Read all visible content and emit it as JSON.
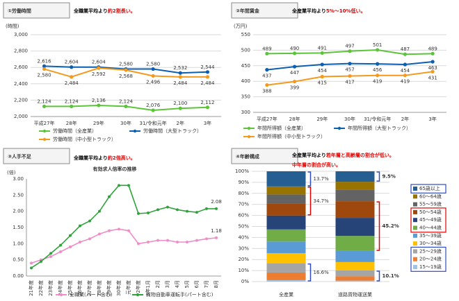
{
  "chart_data": [
    {
      "type": "line",
      "title": "①労働時間",
      "subtitle": [
        [
          {
            "text": "全職業平均より",
            "color": "#000000"
          },
          {
            "text": "約2割長い。",
            "color": "#e00000"
          }
        ]
      ],
      "y_label": "(時間)",
      "grid": true,
      "categories": [
        "平成27年",
        "28年",
        "29年",
        "30年",
        "31/令和元年",
        "2年",
        "3年"
      ],
      "ylim": [
        2000,
        3000
      ],
      "yticks": [
        {
          "value": 2000,
          "label": "2,000"
        },
        {
          "value": 2200,
          "label": "2,200"
        },
        {
          "value": 2400,
          "label": "2,400"
        },
        {
          "value": 2600,
          "label": "2,600"
        },
        {
          "value": 2800,
          "label": "2,800"
        },
        {
          "value": 3000,
          "label": "3,000"
        }
      ],
      "series": [
        {
          "name": "労働時間（全産業）",
          "color": "#5cc43a",
          "values": [
            2124,
            2124,
            2136,
            2124,
            2076,
            2100,
            2112
          ],
          "value_labels": [
            "2,124",
            "2,124",
            "2,136",
            "2,124",
            "2,076",
            "2,100",
            "2,112"
          ]
        },
        {
          "name": "労働時間（大型トラック）",
          "color": "#0b5fb0",
          "values": [
            2616,
            2604,
            2604,
            2580,
            2580,
            2532,
            2544
          ],
          "value_labels": [
            "2,616",
            "2,604",
            "2,604",
            "2,580",
            "2,580",
            "2,532",
            "2,544"
          ]
        },
        {
          "name": "労働時間（中小型トラック）",
          "color": "#f39a1e",
          "values": [
            2580,
            2484,
            2592,
            2568,
            2496,
            2484,
            2484
          ],
          "value_labels": [
            "2,580",
            "2,484",
            "2,592",
            "2,568",
            "2,496",
            "2,484",
            "2,484"
          ]
        }
      ]
    },
    {
      "type": "line",
      "title": "②年間賃金",
      "subtitle": [
        [
          {
            "text": "全産業平均より",
            "color": "#000000"
          },
          {
            "text": "5%～10%低い。",
            "color": "#e00000"
          }
        ]
      ],
      "y_label": "(万円)",
      "grid": true,
      "categories": [
        "平成27年",
        "28年",
        "29年",
        "30年",
        "31/令和元年",
        "2年",
        "3年"
      ],
      "ylim": [
        300,
        550
      ],
      "yticks": [
        300,
        350,
        400,
        450,
        500,
        550
      ],
      "series": [
        {
          "name": "年間所得額（全産業）",
          "color": "#5cc43a",
          "values": [
            489,
            490,
            491,
            497,
            501,
            487,
            489
          ]
        },
        {
          "name": "年間所得額（大型トラック）",
          "color": "#0b5fb0",
          "values": [
            437,
            447,
            454,
            457,
            456,
            454,
            463
          ]
        },
        {
          "name": "年間所得額（中小型トラック）",
          "color": "#f39a1e",
          "values": [
            388,
            399,
            415,
            417,
            419,
            419,
            431
          ]
        }
      ]
    },
    {
      "type": "line",
      "title": "③人手不足",
      "subtitle": [
        [
          {
            "text": "全職業平均より",
            "color": "#000000"
          },
          {
            "text": "約2倍高い。",
            "color": "#e00000"
          }
        ]
      ],
      "chart_title": "有効求人倍率の推移",
      "y_label": "(倍)",
      "grid": false,
      "label_last": true,
      "categories": [
        "21年度",
        "22年度",
        "23年度",
        "24年度",
        "25年度",
        "26年度",
        "27年度",
        "28年度",
        "29年度",
        "30年度",
        "元年度",
        "2年度",
        "3年1月",
        "2月",
        "3月",
        "4月",
        "5月",
        "6月",
        "7月",
        "8月"
      ],
      "ylim": [
        0,
        3
      ],
      "yticks": [
        {
          "value": 0,
          "label": "0.00"
        },
        {
          "value": 0.5,
          "label": "0.50"
        },
        {
          "value": 1,
          "label": "1.00"
        },
        {
          "value": 1.5,
          "label": "1.50"
        },
        {
          "value": 2,
          "label": "2.00"
        },
        {
          "value": 2.5,
          "label": "2.50"
        },
        {
          "value": 3,
          "label": "3.00"
        }
      ],
      "series": [
        {
          "name": "全職業(パート含む)",
          "color": "#f08cc8",
          "values": [
            0.4,
            0.5,
            0.6,
            0.75,
            0.9,
            1.05,
            1.15,
            1.3,
            1.4,
            1.45,
            1.4,
            1.0,
            1.05,
            1.1,
            1.1,
            1.05,
            1.05,
            1.1,
            1.15,
            1.18
          ]
        },
        {
          "name": "貨物自動車運転手(パート含む)",
          "color": "#2ea33a",
          "values": [
            0.25,
            0.45,
            0.7,
            0.95,
            1.25,
            1.55,
            1.7,
            2.0,
            2.45,
            2.8,
            2.8,
            1.93,
            1.95,
            2.05,
            2.13,
            2.05,
            2.0,
            1.97,
            2.08,
            2.08
          ]
        }
      ]
    },
    {
      "type": "stacked_bar",
      "title": "④年齢構成",
      "subtitle": [
        [
          {
            "text": "全産業平均より",
            "color": "#000000"
          },
          {
            "text": "若年層と高齢層の割合が低い。",
            "color": "#e00000"
          }
        ],
        [
          {
            "text": "中年層の割合が高い。",
            "color": "#e00000"
          }
        ]
      ],
      "grid": true,
      "categories": [
        "全産業",
        "道路貨物運送業"
      ],
      "ylim": [
        0,
        100
      ],
      "yticks": [
        {
          "value": 0,
          "label": "0%"
        },
        {
          "value": 10,
          "label": "10%"
        },
        {
          "value": 20,
          "label": "20%"
        },
        {
          "value": 30,
          "label": "30%"
        },
        {
          "value": 40,
          "label": "40%"
        },
        {
          "value": 50,
          "label": "50%"
        },
        {
          "value": 60,
          "label": "60%"
        },
        {
          "value": 70,
          "label": "70%"
        },
        {
          "value": 80,
          "label": "80%"
        },
        {
          "value": 90,
          "label": "90%"
        },
        {
          "value": 100,
          "label": "100%"
        }
      ],
      "series": [
        {
          "name": "15～19歳",
          "color": "#9dc3e6",
          "values": [
            1.3,
            0.9
          ]
        },
        {
          "name": "20～24歳",
          "color": "#ed7d31",
          "values": [
            6.9,
            3.9
          ]
        },
        {
          "name": "25～29歳",
          "color": "#a5a5a5",
          "values": [
            8.4,
            5.3
          ]
        },
        {
          "name": "30～34歳",
          "color": "#ffc000",
          "values": [
            9.2,
            7.6
          ]
        },
        {
          "name": "35～39歳",
          "color": "#5b9bd5",
          "values": [
            10.5,
            10.0
          ]
        },
        {
          "name": "40～44歳",
          "color": "#70ad47",
          "values": [
            11.0,
            13.7
          ]
        },
        {
          "name": "45～49歳",
          "color": "#264478",
          "values": [
            12.6,
            16.4
          ]
        },
        {
          "name": "50～54歳",
          "color": "#9e480e",
          "values": [
            11.1,
            15.1
          ]
        },
        {
          "name": "55～59歳",
          "color": "#636363",
          "values": [
            8.0,
            10.6
          ]
        },
        {
          "name": "60～64歳",
          "color": "#997300",
          "values": [
            7.3,
            7.0
          ]
        },
        {
          "name": "65歳以上",
          "color": "#255e91",
          "values": [
            13.7,
            9.5
          ]
        }
      ],
      "annotations": [
        {
          "text": "13.7%",
          "color": "#2e4bbf"
        },
        {
          "text": "34.7%",
          "color": "#e00000"
        },
        {
          "text": "16.6%",
          "color": "#2e4bbf"
        },
        {
          "text": "9.5%",
          "color": "#2e4bbf"
        },
        {
          "text": "45.2%",
          "color": "#e00000"
        },
        {
          "text": "10.1%",
          "color": "#2e4bbf"
        }
      ]
    }
  ]
}
